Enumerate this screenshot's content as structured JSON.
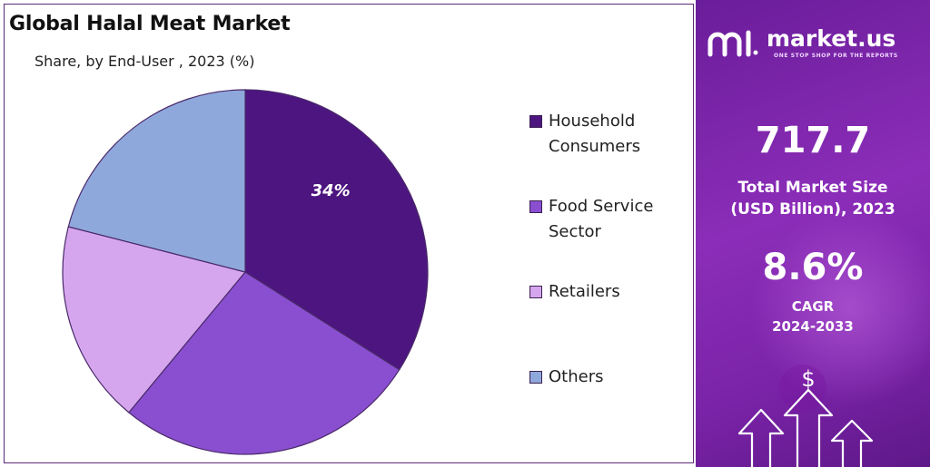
{
  "header": {
    "title": "Global Halal Meat Market",
    "subtitle": "Share, by End-User , 2023 (%)"
  },
  "chart_data": {
    "type": "pie",
    "title": "Global Halal Meat Market",
    "subtitle": "Share, by End-User , 2023 (%)",
    "categories": [
      "Household Consumers",
      "Food Service Sector",
      "Retailers",
      "Others"
    ],
    "values": [
      34,
      27,
      18,
      21
    ],
    "data_labels": [
      "34%",
      "",
      "",
      ""
    ],
    "colors": [
      "#4d1580",
      "#8a4fd0",
      "#d5a6ee",
      "#8fa8dc"
    ],
    "legend_position": "right",
    "start_angle": "12 o'clock, clockwise"
  },
  "legend": {
    "items": [
      {
        "line1": "Household",
        "line2": "Consumers",
        "color": "#4d1580"
      },
      {
        "line1": "Food Service",
        "line2": "Sector",
        "color": "#8a4fd0"
      },
      {
        "line1": "Retailers",
        "line2": "",
        "color": "#d5a6ee"
      },
      {
        "line1": "Others",
        "line2": "",
        "color": "#8fa8dc"
      }
    ]
  },
  "panel": {
    "brand_name": "market.us",
    "brand_tagline": "ONE STOP SHOP FOR THE REPORTS",
    "market_size_value": "717.7",
    "market_size_label_line1": "Total Market Size",
    "market_size_label_line2": "(USD Billion), 2023",
    "cagr_value": "8.6%",
    "cagr_label_line1": "CAGR",
    "cagr_label_line2": "2024-2033",
    "art_symbol": "$",
    "accent_color": "#7a23a8"
  }
}
